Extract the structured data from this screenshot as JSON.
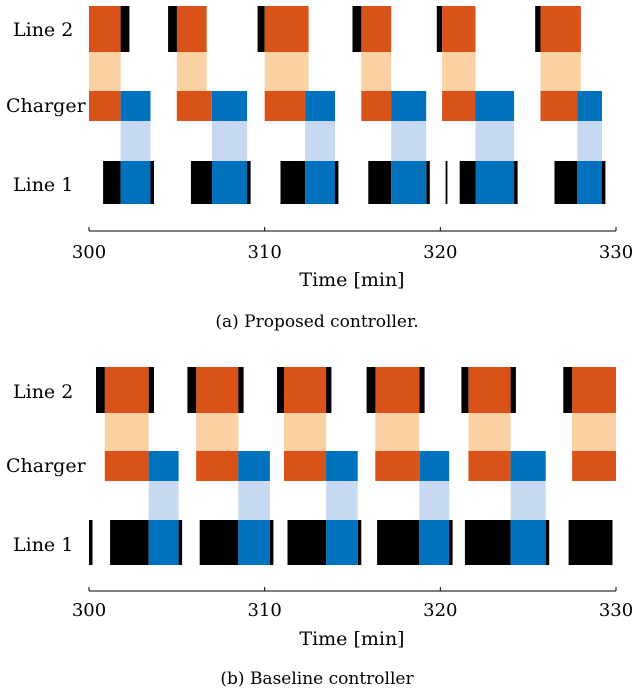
{
  "colors": {
    "orange": "#d95319",
    "light_orange": "#fbd0a2",
    "blue": "#0072bd",
    "light_blue": "#c6d9f0",
    "black": "#000000"
  },
  "chart_data": [
    {
      "type": "gantt",
      "caption": "(a) Proposed controller.",
      "xlabel": "Time [min]",
      "xlim": [
        300,
        330
      ],
      "xticks": [
        300,
        310,
        320,
        330
      ],
      "rows": [
        "Line 2",
        "Charger",
        "Line 1"
      ],
      "line2_orange": [
        [
          300.0,
          301.8
        ],
        [
          305.0,
          306.7
        ],
        [
          310.0,
          312.5
        ],
        [
          315.5,
          317.2
        ],
        [
          320.1,
          322.0
        ],
        [
          325.7,
          328.0
        ]
      ],
      "line2_black": [
        [
          301.8,
          302.3
        ],
        [
          304.5,
          305.0
        ],
        [
          309.6,
          310.0
        ],
        [
          315.0,
          315.5
        ],
        [
          319.8,
          320.1
        ],
        [
          325.4,
          325.7
        ]
      ],
      "charger_light_orange": [
        [
          300.0,
          301.8
        ],
        [
          305.0,
          306.7
        ],
        [
          310.0,
          312.5
        ],
        [
          315.5,
          317.2
        ],
        [
          320.1,
          322.0
        ],
        [
          325.7,
          328.0
        ]
      ],
      "charger_orange": [
        [
          300.0,
          301.8
        ],
        [
          305.0,
          307.0
        ],
        [
          310.0,
          312.3
        ],
        [
          315.5,
          317.2
        ],
        [
          320.1,
          322.0
        ],
        [
          325.7,
          327.8
        ]
      ],
      "charger_blue": [
        [
          301.8,
          303.5
        ],
        [
          307.0,
          309.0
        ],
        [
          312.3,
          314.0
        ],
        [
          317.2,
          319.2
        ],
        [
          322.0,
          324.2
        ],
        [
          327.8,
          329.2
        ]
      ],
      "charger_light_blue": [
        [
          301.8,
          303.5
        ],
        [
          307.0,
          309.0
        ],
        [
          312.3,
          314.0
        ],
        [
          317.2,
          319.2
        ],
        [
          322.0,
          324.2
        ],
        [
          327.8,
          329.2
        ]
      ],
      "line1_black": [
        [
          300.8,
          301.8
        ],
        [
          305.8,
          307.0
        ],
        [
          310.9,
          312.3
        ],
        [
          315.9,
          317.2
        ],
        [
          321.1,
          322.0
        ],
        [
          326.5,
          327.8
        ]
      ],
      "line1_blue": [
        [
          301.8,
          303.5
        ],
        [
          307.0,
          309.0
        ],
        [
          312.3,
          314.0
        ],
        [
          317.2,
          319.2
        ],
        [
          322.0,
          324.2
        ],
        [
          327.8,
          329.2
        ]
      ],
      "line1_end_black": [
        [
          303.5,
          303.7
        ],
        [
          309.0,
          309.2
        ],
        [
          314.0,
          314.2
        ],
        [
          319.2,
          319.4
        ],
        [
          324.2,
          324.4
        ],
        [
          329.2,
          329.4
        ]
      ],
      "line1_marks": [
        [
          320.3,
          320.4
        ]
      ]
    },
    {
      "type": "gantt",
      "caption": "(b) Baseline controller",
      "xlabel": "Time [min]",
      "xlim": [
        300,
        330
      ],
      "xticks": [
        300,
        310,
        320,
        330
      ],
      "rows": [
        "Line 2",
        "Charger",
        "Line 1"
      ],
      "line2_orange": [
        [
          300.9,
          303.4
        ],
        [
          306.1,
          308.5
        ],
        [
          311.1,
          313.5
        ],
        [
          316.3,
          318.8
        ],
        [
          321.6,
          324.0
        ],
        [
          327.5,
          330.0
        ]
      ],
      "line2_black": [
        [
          300.4,
          300.9
        ],
        [
          303.4,
          303.7
        ],
        [
          305.6,
          306.1
        ],
        [
          308.5,
          308.8
        ],
        [
          310.7,
          311.1
        ],
        [
          313.5,
          313.8
        ],
        [
          315.8,
          316.3
        ],
        [
          318.8,
          319.1
        ],
        [
          321.2,
          321.6
        ],
        [
          324.0,
          324.3
        ],
        [
          327.0,
          327.5
        ]
      ],
      "charger_light_orange": [
        [
          300.9,
          303.4
        ],
        [
          306.1,
          308.5
        ],
        [
          311.1,
          313.5
        ],
        [
          316.3,
          318.8
        ],
        [
          321.6,
          324.0
        ],
        [
          327.5,
          330.0
        ]
      ],
      "charger_orange": [
        [
          300.9,
          303.4
        ],
        [
          306.1,
          308.5
        ],
        [
          311.1,
          313.5
        ],
        [
          316.3,
          318.8
        ],
        [
          321.6,
          324.0
        ],
        [
          327.5,
          330.0
        ]
      ],
      "charger_blue": [
        [
          303.4,
          305.1
        ],
        [
          308.5,
          310.3
        ],
        [
          313.5,
          315.3
        ],
        [
          318.8,
          320.5
        ],
        [
          324.0,
          326.0
        ]
      ],
      "charger_light_blue": [
        [
          303.4,
          305.1
        ],
        [
          308.5,
          310.3
        ],
        [
          313.5,
          315.3
        ],
        [
          318.8,
          320.5
        ],
        [
          324.0,
          326.0
        ]
      ],
      "line1_black": [
        [
          301.2,
          303.4
        ],
        [
          306.3,
          308.5
        ],
        [
          311.3,
          313.5
        ],
        [
          316.4,
          318.8
        ],
        [
          321.4,
          324.0
        ],
        [
          327.3,
          329.8
        ]
      ],
      "line1_blue": [
        [
          303.4,
          305.1
        ],
        [
          308.5,
          310.3
        ],
        [
          313.5,
          315.3
        ],
        [
          318.8,
          320.5
        ],
        [
          324.0,
          326.0
        ]
      ],
      "line1_end_black": [
        [
          305.1,
          305.3
        ],
        [
          310.3,
          310.5
        ],
        [
          315.3,
          315.5
        ],
        [
          320.5,
          320.7
        ],
        [
          326.0,
          326.2
        ]
      ],
      "line1_marks": [
        [
          300.0,
          300.2
        ]
      ]
    }
  ]
}
